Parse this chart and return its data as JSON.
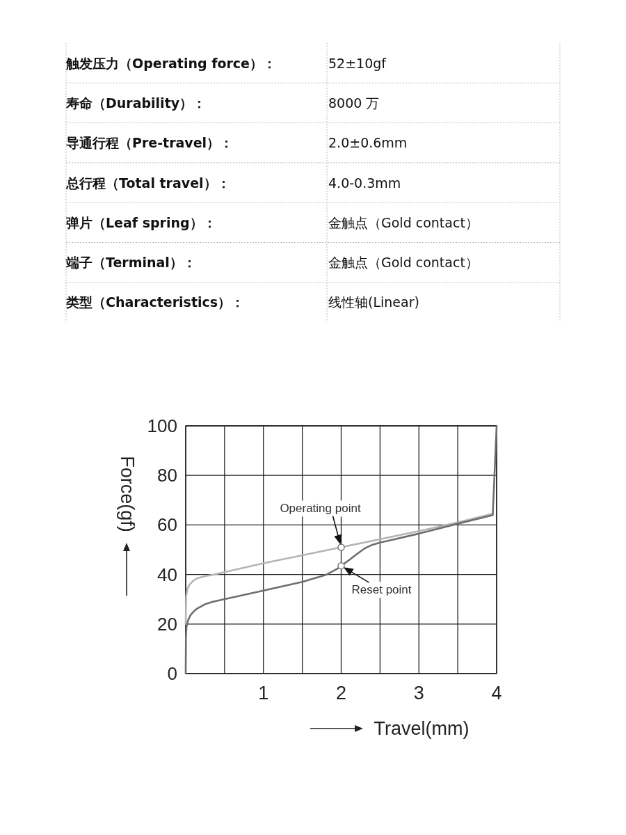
{
  "chart_data": [
    {
      "type": "other",
      "annotations": [
        "触发压力（Operating force）：",
        "52±10gf",
        "寿命（Durability）：",
        "8000 万",
        "导通行程（Pre-travel）：",
        "2.0±0.6mm",
        "总行程（Total travel）：",
        "4.0-0.3mm",
        "弹片（Leaf spring）：",
        "金触点（Gold contact）",
        "端子（Terminal）：",
        "金触点（Gold contact）",
        "类型（Characteristics）：",
        "线性轴(Linear)"
      ]
    },
    {
      "type": "line",
      "xlabel": "Travel(mm)",
      "ylabel": "Force(gf)",
      "xlim": [
        0,
        4
      ],
      "ylim": [
        0,
        100
      ],
      "xticks": [
        {
          "value": 0,
          "label": null
        },
        {
          "value": 0.5,
          "label": null
        },
        1,
        {
          "value": 1.5,
          "label": null
        },
        2,
        {
          "value": 2.5,
          "label": null
        },
        3,
        {
          "value": 3.5,
          "label": null
        },
        4
      ],
      "yticks": [
        0,
        20,
        40,
        60,
        80,
        100
      ],
      "grid": true,
      "line_style": "solid",
      "series": [
        {
          "color": "#b5b5b5",
          "x": [
            0,
            0.005,
            0.02,
            0.05,
            0.1,
            0.15,
            0.25,
            0.37,
            1,
            2,
            3,
            3.5,
            3.95
          ],
          "values": [
            20,
            31,
            34,
            36,
            37.5,
            38.5,
            39.3,
            40,
            44.5,
            51,
            57.5,
            61,
            64.5
          ]
        },
        {
          "color": "#6e6e6e",
          "x": [
            0,
            0.003,
            0.01,
            0.03,
            0.06,
            0.1,
            0.15,
            0.25,
            0.35,
            1,
            1.5,
            1.8,
            1.95,
            2,
            2.1,
            2.2,
            2.3,
            2.4,
            2.5,
            2.6,
            3,
            3.5,
            3.95,
            4
          ],
          "values": [
            0,
            15,
            19,
            21.5,
            23.5,
            25,
            26.3,
            28,
            29,
            33.5,
            37,
            39.8,
            42.3,
            43.5,
            45.8,
            48.2,
            50.5,
            52,
            52.9,
            53.6,
            56.5,
            60.5,
            64,
            100
          ]
        }
      ],
      "annotations": [
        {
          "text": "Operating point",
          "x": 2,
          "y": 51
        },
        {
          "text": "Reset point",
          "x": 2,
          "y": 43.5
        }
      ]
    }
  ]
}
